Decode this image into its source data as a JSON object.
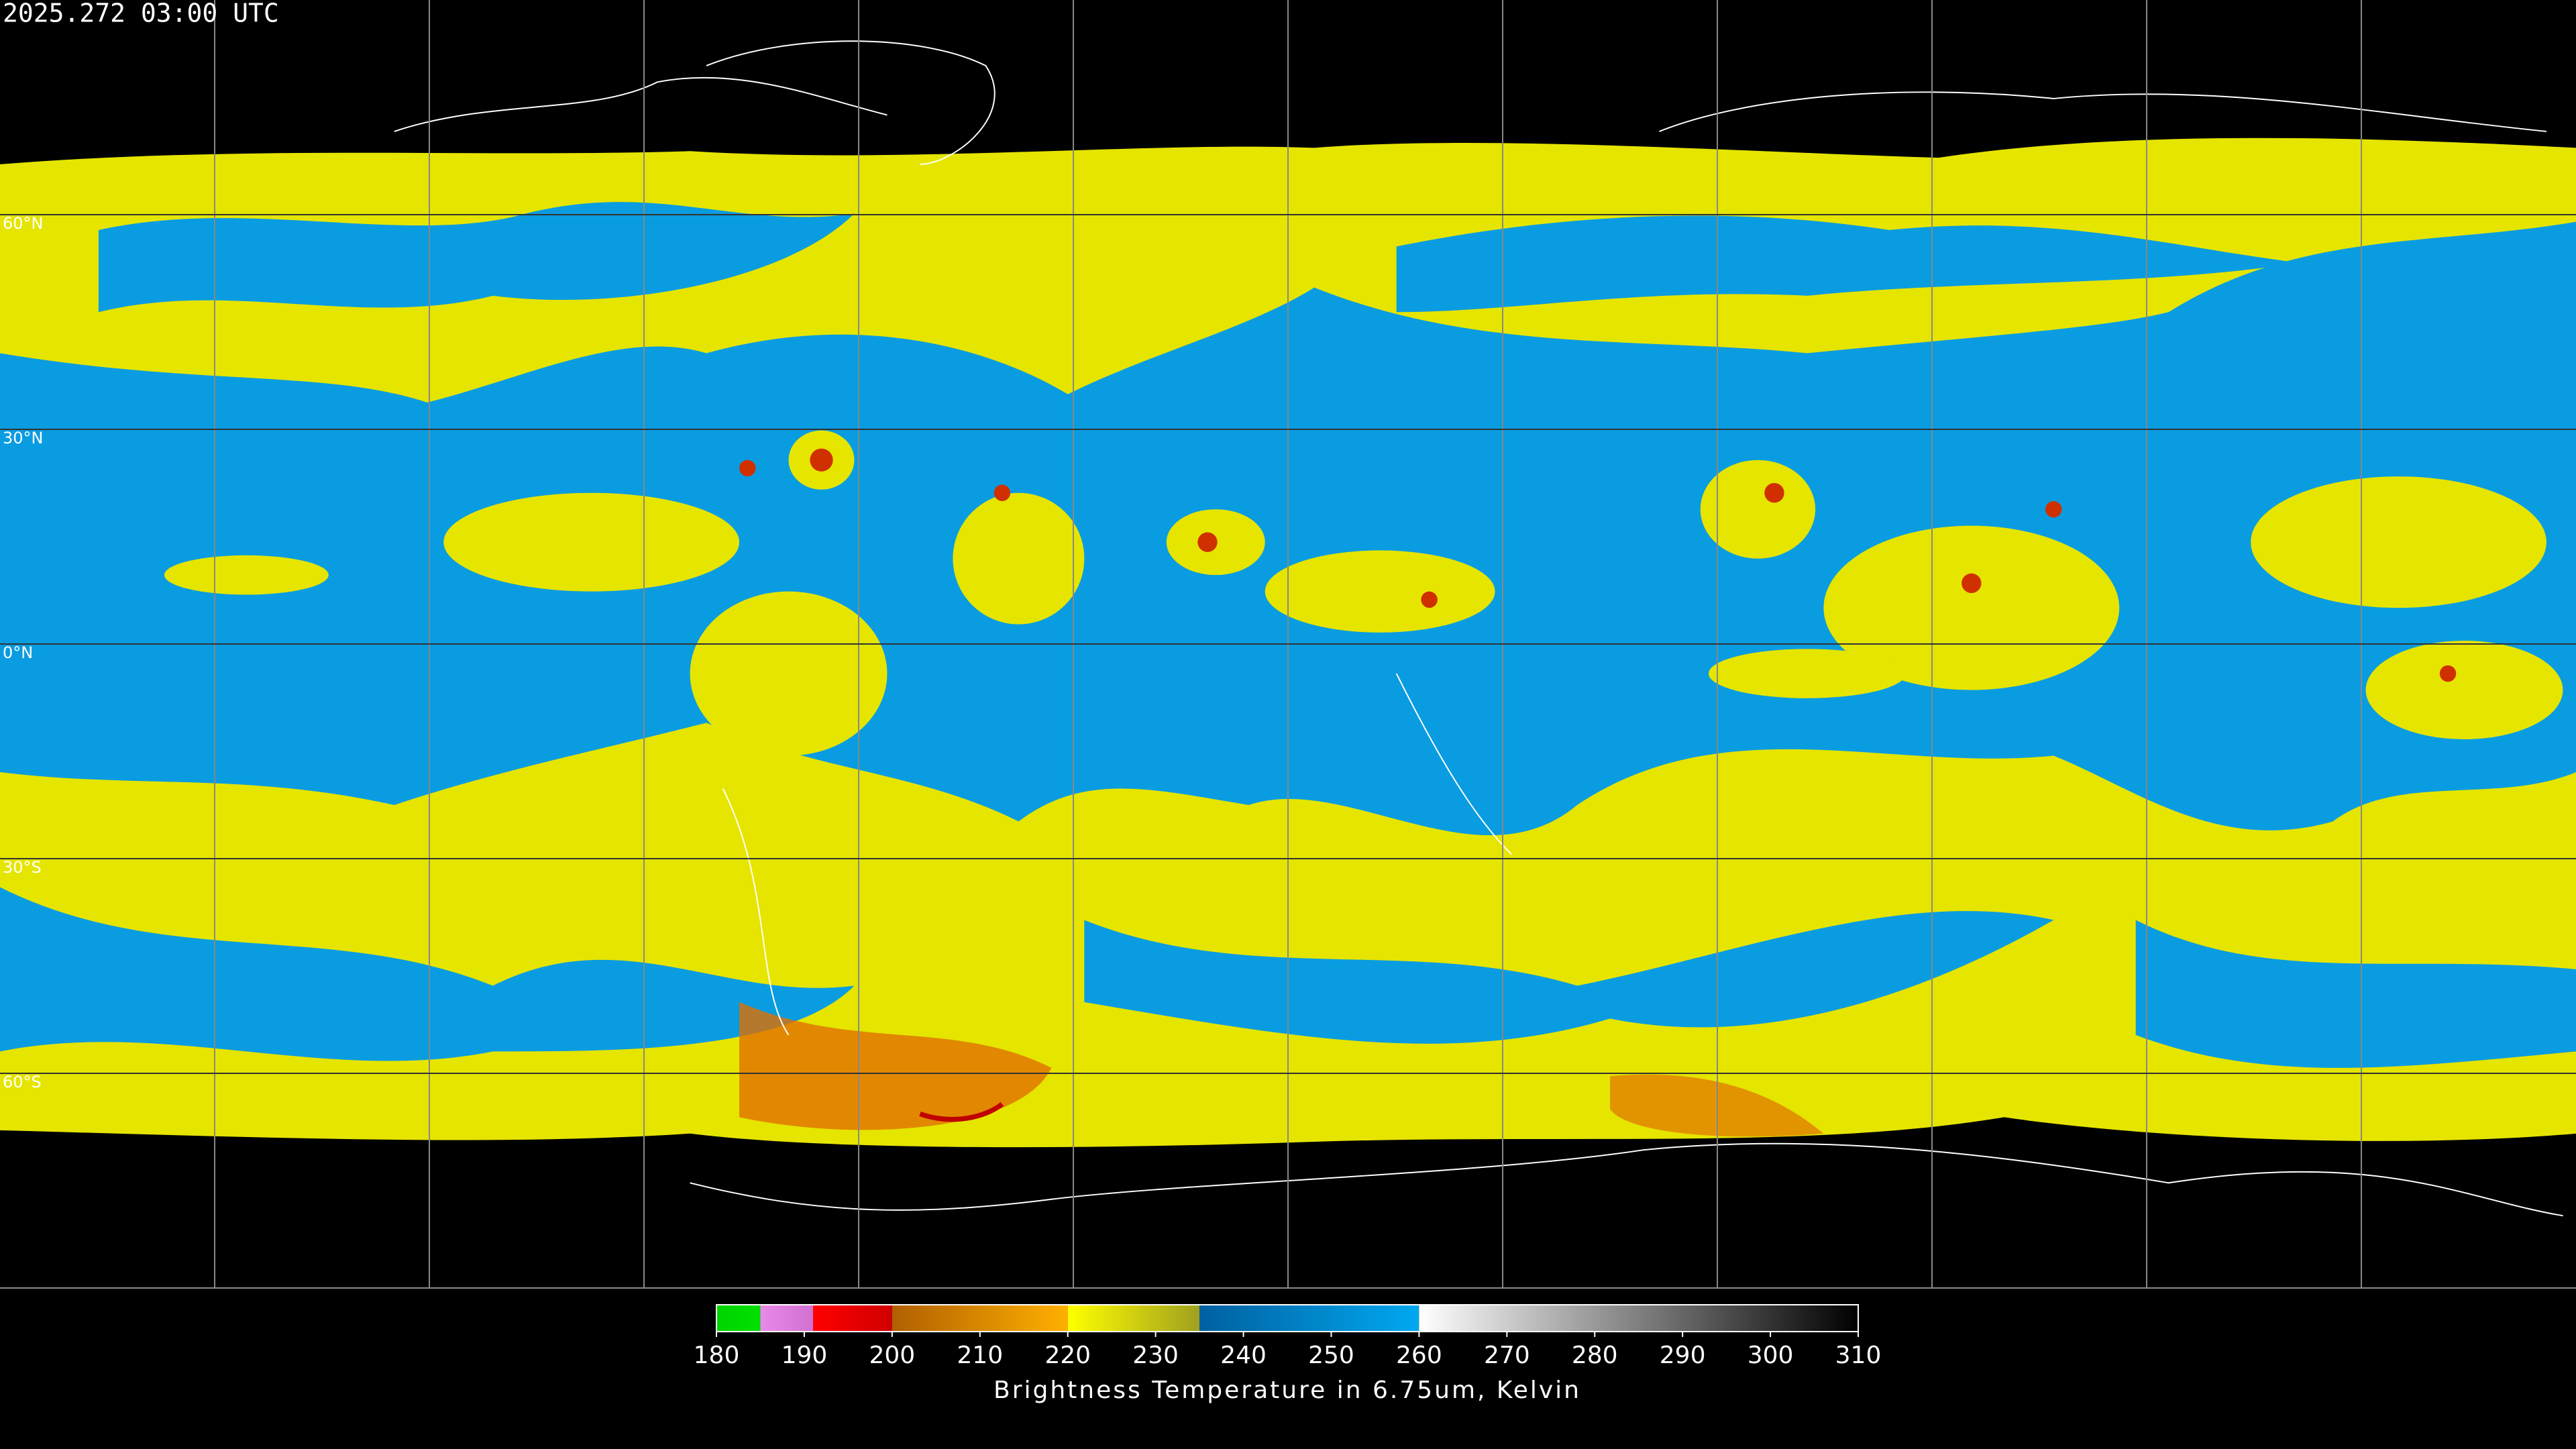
{
  "header": {
    "timestamp": "2025.272 03:00 UTC"
  },
  "map": {
    "lat_range": [
      90,
      -90
    ],
    "lat_ticks": [
      {
        "value": 60,
        "label": "60°N"
      },
      {
        "value": 30,
        "label": "30°N"
      },
      {
        "value": 0,
        "label": "0°N"
      },
      {
        "value": -30,
        "label": "30°S"
      },
      {
        "value": -60,
        "label": "60°S"
      }
    ]
  },
  "colorbar": {
    "title": "Brightness Temperature in 6.75um, Kelvin",
    "range": [
      180,
      310
    ],
    "ticks": [
      180,
      190,
      200,
      210,
      220,
      230,
      240,
      250,
      260,
      270,
      280,
      290,
      300,
      310
    ],
    "segments": [
      {
        "from": 180,
        "to": 185,
        "colors": [
          "#00d400",
          "#00e000"
        ]
      },
      {
        "from": 185,
        "to": 191,
        "colors": [
          "#e88ae8",
          "#d070d0"
        ]
      },
      {
        "from": 191,
        "to": 200,
        "colors": [
          "#ff0000",
          "#d00000"
        ]
      },
      {
        "from": 200,
        "to": 220,
        "colors": [
          "#b06000",
          "#ffb000"
        ]
      },
      {
        "from": 220,
        "to": 235,
        "colors": [
          "#ffff00",
          "#a0a020"
        ]
      },
      {
        "from": 235,
        "to": 260,
        "colors": [
          "#0060a0",
          "#00a8f0"
        ]
      },
      {
        "from": 260,
        "to": 310,
        "colors": [
          "#ffffff",
          "#000000"
        ]
      }
    ]
  }
}
